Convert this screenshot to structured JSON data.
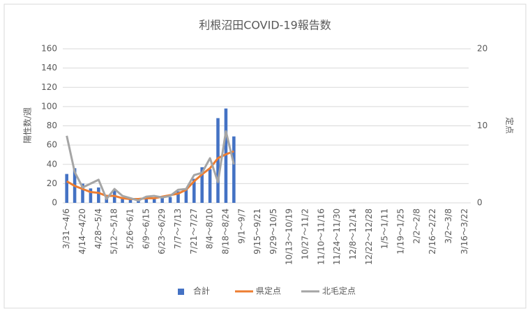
{
  "chart_data": {
    "type": "bar",
    "title": "利根沼田COVID-19報告数",
    "y_label": "陽性数/週",
    "y2_label": "定点",
    "categories": [
      "3/31～4/6",
      null,
      "4/14～4/20",
      null,
      "4/28～5/4",
      null,
      "5/12～5/18",
      null,
      "5/26～6/1",
      null,
      "6/9～6/15",
      null,
      "6/23～6/29",
      null,
      "7/7～7/13",
      null,
      "7/21～7/27",
      null,
      "8/4～8/10",
      null,
      "8/18～8/24",
      null,
      "9/1～9/7",
      null,
      "9/15～9/21",
      null,
      "9/29～10/5",
      null,
      "10/13～10/19",
      null,
      "10/27～11/2",
      null,
      "11/10～11/16",
      null,
      "11/24～11/30",
      null,
      "12/8～12/14",
      null,
      "12/22～12/28",
      null,
      "1/5～1/11",
      null,
      "1/19～1/25",
      null,
      "2/2～2/8",
      null,
      "2/16～2/22",
      null,
      "3/2～3/8",
      null,
      "3/16～3/22"
    ],
    "series": [
      {
        "name": "合計",
        "type": "bar",
        "color": "#4472c4",
        "values": [
          30,
          36,
          20,
          15,
          16,
          6,
          13,
          4,
          4,
          3,
          6,
          5,
          6,
          6,
          12,
          14,
          25,
          37,
          35,
          88,
          98,
          69,
          null,
          null,
          null,
          null,
          null,
          null,
          null,
          null,
          null,
          null,
          null,
          null,
          null,
          null,
          null,
          null,
          null,
          null,
          null,
          null,
          null,
          null,
          null,
          null,
          null,
          null,
          null,
          null,
          null
        ]
      },
      {
        "name": "県定点",
        "type": "line",
        "axis": "y2",
        "color": "#ed7d31",
        "values": [
          2.8,
          2.2,
          1.8,
          1.4,
          1.3,
          0.9,
          0.9,
          0.6,
          0.5,
          0.5,
          0.6,
          0.6,
          0.8,
          1.0,
          1.2,
          1.7,
          2.8,
          3.7,
          4.5,
          5.8,
          6.3,
          6.7,
          null,
          null,
          null,
          null,
          null,
          null,
          null,
          null,
          null,
          null,
          null,
          null,
          null,
          null,
          null,
          null,
          null,
          null,
          null,
          null,
          null,
          null,
          null,
          null,
          null,
          null,
          null,
          null,
          null
        ]
      },
      {
        "name": "北毛定点",
        "type": "line",
        "axis": "y2",
        "color": "#a5a5a5",
        "values": [
          8.7,
          4.0,
          2.0,
          2.5,
          3.0,
          0.5,
          1.8,
          0.9,
          0.6,
          0.3,
          0.8,
          0.9,
          0.7,
          0.9,
          1.7,
          1.8,
          3.6,
          3.9,
          5.8,
          2.7,
          9.3,
          5.0,
          null,
          null,
          null,
          null,
          null,
          null,
          null,
          null,
          null,
          null,
          null,
          null,
          null,
          null,
          null,
          null,
          null,
          null,
          null,
          null,
          null,
          null,
          null,
          null,
          null,
          null,
          null,
          null,
          null
        ]
      }
    ],
    "ylim": [
      0,
      160
    ],
    "yticks": [
      0,
      20,
      40,
      60,
      80,
      100,
      120,
      140,
      160
    ],
    "y2lim": [
      0,
      20
    ],
    "y2ticks": [
      0,
      10,
      20
    ],
    "grid": true,
    "legend": "bottom"
  }
}
